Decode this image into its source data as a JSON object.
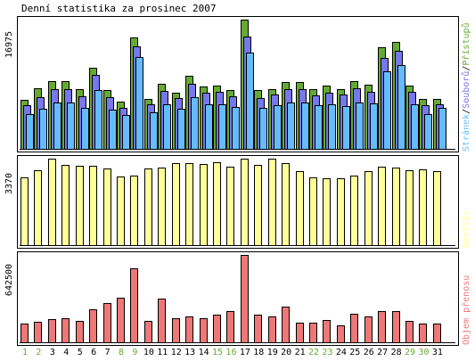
{
  "chart_data": {
    "type": "bar",
    "title": "Denní statistika za prosinec 2007",
    "categories": [
      "1",
      "2",
      "3",
      "4",
      "5",
      "6",
      "7",
      "8",
      "9",
      "10",
      "11",
      "12",
      "13",
      "14",
      "15",
      "16",
      "17",
      "18",
      "19",
      "20",
      "21",
      "22",
      "23",
      "24",
      "25",
      "26",
      "27",
      "28",
      "29",
      "30",
      "31"
    ],
    "weekend_days": [
      "1",
      "2",
      "8",
      "9",
      "15",
      "16",
      "22",
      "23",
      "29",
      "30"
    ],
    "colors": {
      "hits": "#66aa33",
      "files": "#7777ee",
      "pages": "#66bbff",
      "visits": "#ffff99",
      "volume": "#ee7777",
      "weekday_label": "#000000",
      "weekend_label": "#66aa33",
      "frame": "#000000",
      "grid_fill": "#ffffff"
    },
    "panels": [
      {
        "id": "requests",
        "ymax_label": "16975",
        "ymax": 16975,
        "legend": [
          {
            "text": "Stránek",
            "color_key": "pages"
          },
          {
            "text": "Souborů",
            "color_key": "files"
          },
          {
            "text": "Přístupů",
            "color_key": "hits"
          }
        ],
        "legend_separator": "/",
        "series": [
          {
            "name": "Přístupů",
            "color_key": "hits",
            "values": [
              6400,
              8000,
              8900,
              8900,
              7800,
              10700,
              7700,
              6200,
              14600,
              6600,
              8500,
              7400,
              9600,
              8200,
              8300,
              7700,
              16975,
              7700,
              7900,
              8800,
              8800,
              7800,
              8300,
              7800,
              8900,
              8400,
              13300,
              14100,
              8300,
              6500,
              6500
            ]
          },
          {
            "name": "Souborů",
            "color_key": "files",
            "values": [
              5700,
              6800,
              7900,
              7900,
              6900,
              9700,
              6800,
              5400,
              13500,
              5800,
              7600,
              6700,
              8500,
              7400,
              7500,
              6900,
              14800,
              6700,
              7100,
              7800,
              7800,
              7000,
              7400,
              7100,
              8000,
              7500,
              11900,
              12900,
              7500,
              5700,
              5900
            ]
          },
          {
            "name": "Stránek",
            "color_key": "pages",
            "values": [
              4600,
              5300,
              6100,
              6100,
              5400,
              7700,
              5200,
              4400,
              12100,
              4800,
              5800,
              5300,
              6800,
              5800,
              5900,
              5500,
              12600,
              5400,
              5700,
              6100,
              6100,
              5700,
              5900,
              5600,
              6100,
              6000,
              10200,
              11000,
              5800,
              4600,
              5400
            ]
          }
        ]
      },
      {
        "id": "visits",
        "ymax_label": "3370",
        "ymax": 3370,
        "legend": [
          {
            "text": "Návštěv",
            "color_key": "visits"
          }
        ],
        "series": [
          {
            "name": "Návštěv",
            "color_key": "visits",
            "values": [
              2640,
              2930,
              3370,
              3140,
              3100,
              3090,
              2990,
              2690,
              2700,
              3000,
              3020,
              3200,
              3190,
              3160,
              3240,
              3060,
              3370,
              3140,
              3370,
              3200,
              2900,
              2650,
              2610,
              2600,
              2700,
              2870,
              3040,
              3020,
              2920,
              2960,
              2900
            ]
          }
        ]
      },
      {
        "id": "volume",
        "ymax_label": "642500",
        "ymax": 642500,
        "legend": [
          {
            "text": "Objem přenosu",
            "color_key": "volume"
          }
        ],
        "series": [
          {
            "name": "Objem přenosu",
            "color_key": "volume",
            "values": [
              140000,
              150000,
              170000,
              175000,
              155000,
              240000,
              290000,
              330000,
              545000,
              160000,
              320000,
              180000,
              190000,
              175000,
              200000,
              230000,
              642500,
              205000,
              190000,
              260000,
              145000,
              145000,
              165000,
              125000,
              210000,
              190000,
              230000,
              230000,
              160000,
              140000,
              135000
            ]
          }
        ]
      }
    ]
  }
}
